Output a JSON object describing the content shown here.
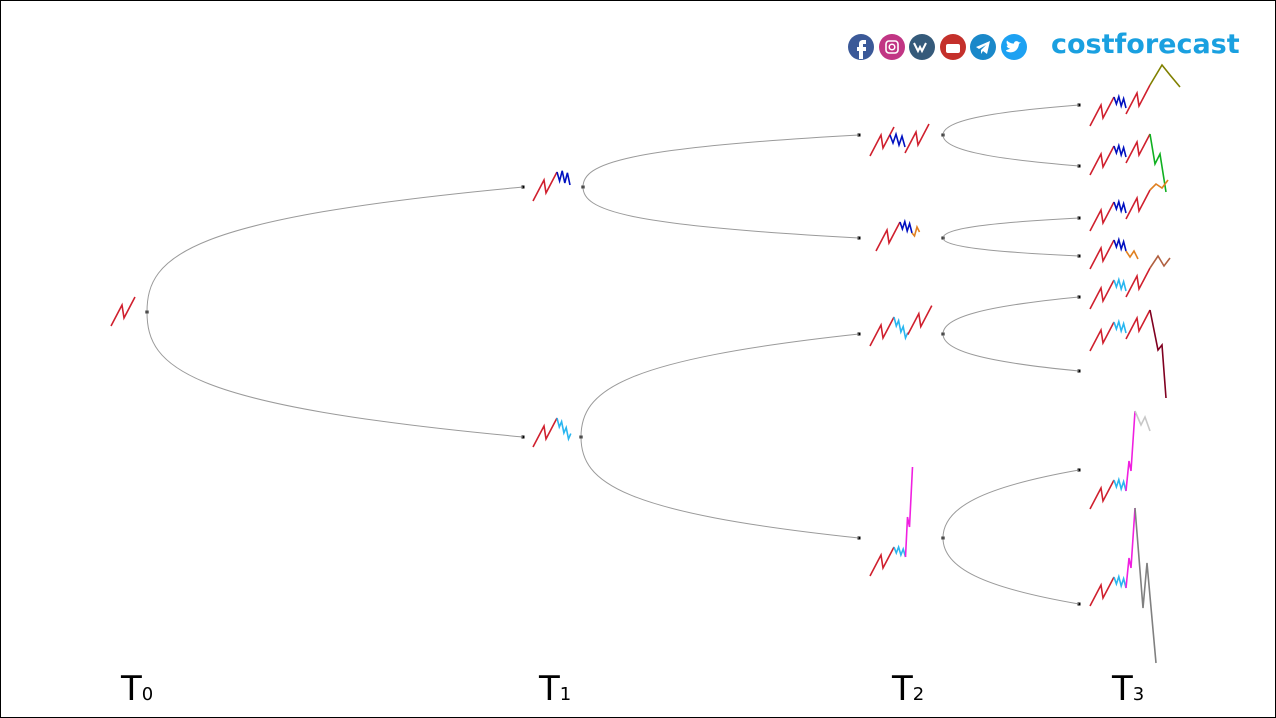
{
  "brand": "costforecast",
  "time_axis": [
    {
      "base": "T",
      "sub": "0"
    },
    {
      "base": "T",
      "sub": "1"
    },
    {
      "base": "T",
      "sub": "2"
    },
    {
      "base": "T",
      "sub": "3"
    }
  ]
}
